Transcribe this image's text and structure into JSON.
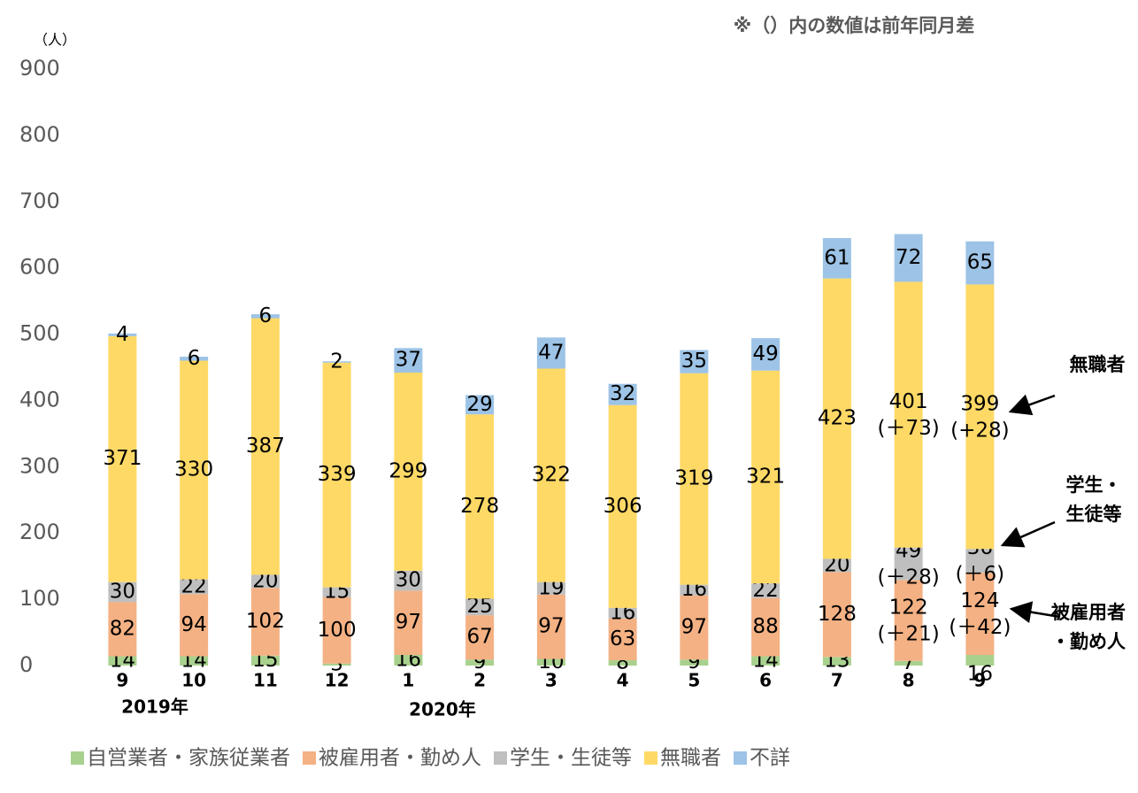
{
  "chart_data": {
    "type": "stacked_bar",
    "unit_label": "（人）",
    "note": "※（）内の数値は前年同月差",
    "categories": [
      "9",
      "10",
      "11",
      "12",
      "1",
      "2",
      "3",
      "4",
      "5",
      "6",
      "7",
      "8",
      "9"
    ],
    "year_labels": [
      "2019年",
      "2020年"
    ],
    "ylim": [
      0,
      900
    ],
    "yticks": [
      0,
      100,
      200,
      300,
      400,
      500,
      600,
      700,
      800,
      900
    ],
    "legend": "bottom",
    "series": [
      {
        "name": "自営業者・家族従業者",
        "color": "#a9d18e",
        "values": [
          14,
          14,
          15,
          3,
          16,
          9,
          10,
          8,
          9,
          14,
          13,
          7,
          16
        ],
        "diff_labels": [
          null,
          null,
          null,
          null,
          null,
          null,
          null,
          null,
          null,
          null,
          null,
          null,
          null
        ]
      },
      {
        "name": "被雇用者・勤め人",
        "color": "#f4b183",
        "values": [
          82,
          94,
          102,
          100,
          97,
          67,
          97,
          63,
          97,
          88,
          128,
          122,
          124
        ],
        "diff_labels": [
          null,
          null,
          null,
          null,
          null,
          null,
          null,
          null,
          null,
          null,
          null,
          "(＋21)",
          "(＋42)"
        ]
      },
      {
        "name": "学生・生徒等",
        "color": "#bfbfbf",
        "values": [
          30,
          22,
          20,
          15,
          30,
          25,
          19,
          16,
          16,
          22,
          20,
          49,
          36
        ],
        "diff_labels": [
          null,
          null,
          null,
          null,
          null,
          null,
          null,
          null,
          null,
          null,
          null,
          "(＋28)",
          "(＋6)"
        ]
      },
      {
        "name": "無職者",
        "color": "#ffd966",
        "values": [
          371,
          330,
          387,
          339,
          299,
          278,
          322,
          306,
          319,
          321,
          423,
          401,
          399
        ],
        "diff_labels": [
          null,
          null,
          null,
          null,
          null,
          null,
          null,
          null,
          null,
          null,
          null,
          "(＋73)",
          "(+28)"
        ]
      },
      {
        "name": "不詳",
        "color": "#9dc3e6",
        "values": [
          4,
          6,
          6,
          2,
          37,
          29,
          47,
          32,
          35,
          49,
          61,
          72,
          65
        ],
        "diff_labels": [
          null,
          null,
          null,
          null,
          null,
          null,
          null,
          null,
          null,
          null,
          null,
          null,
          null
        ]
      }
    ],
    "callouts": [
      [
        "無職者"
      ],
      [
        "学生・",
        "生徒等"
      ],
      [
        "被雇用者",
        "・勤め人"
      ]
    ]
  }
}
